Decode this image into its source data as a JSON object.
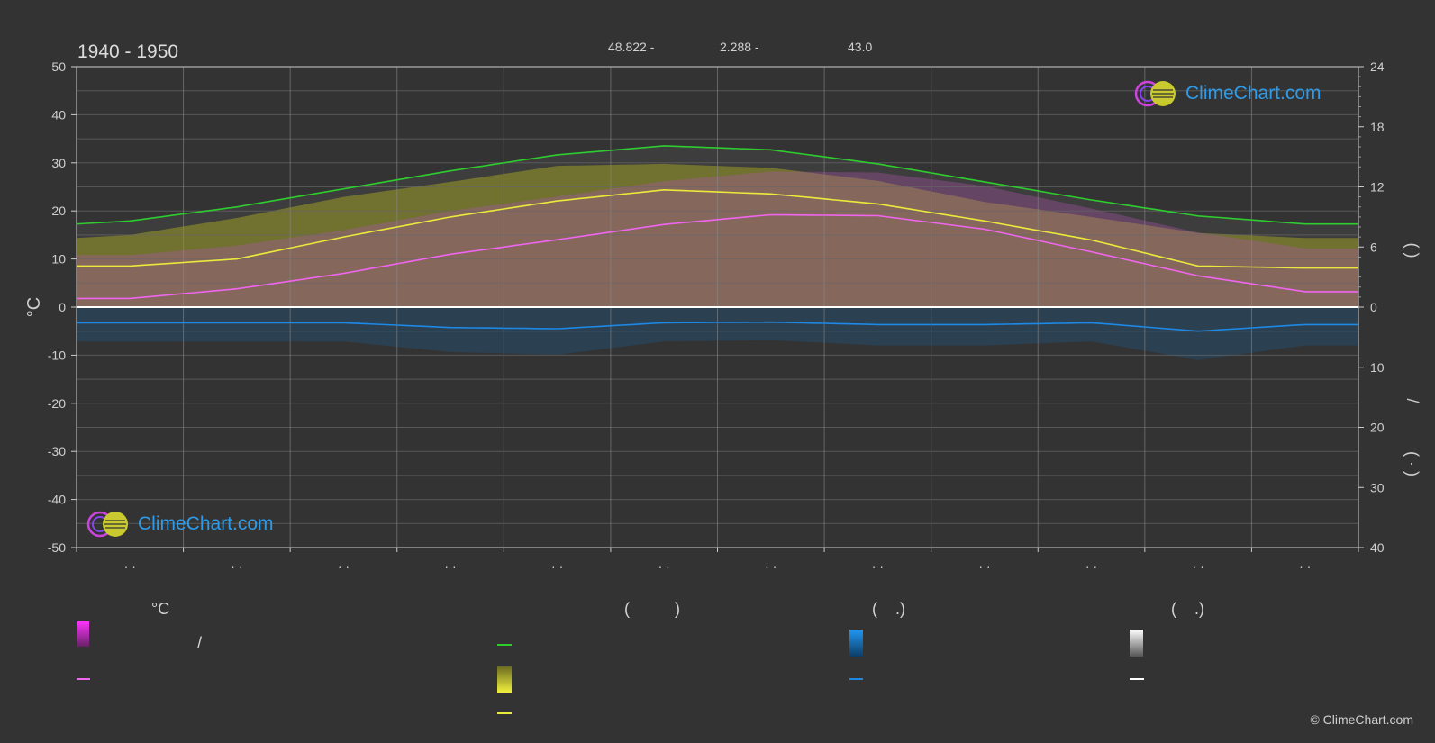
{
  "period": "1940 - 1950",
  "location": {
    "lat": "48.822 -",
    "lon": "2.288 -",
    "elev": "43.0"
  },
  "logo_text": "ClimeChart.com",
  "copyright": "© ClimeChart.com",
  "legend": {
    "col1_head": "°C",
    "col2_head": "(          )",
    "col3_head": "(    .)",
    "col4_head": "(    .)",
    "slash": "/"
  },
  "colors": {
    "background": "#333333",
    "daylight": "#2ecc2e",
    "sunshine": "#eaea3c",
    "temperature": "#ee66ee",
    "rain": "#1e88e5",
    "snow": "#ffffff"
  },
  "chart_data": {
    "type": "line",
    "title": "1940 - 1950",
    "ylabel": "°C",
    "ylim": [
      -50,
      50
    ],
    "y_ticks": [
      50,
      40,
      30,
      20,
      10,
      0,
      -10,
      -20,
      -30,
      -40,
      -50
    ],
    "y2_upper_ticks": [
      24,
      18,
      12,
      6,
      0
    ],
    "y2_upper_range": [
      0,
      24
    ],
    "y2_lower_ticks": [
      10,
      20,
      30,
      40
    ],
    "y2_lower_range": [
      0,
      40
    ],
    "y2_labels": [
      "(    )",
      "/",
      "(  ·  )"
    ],
    "x_month_labels": [
      "· ·",
      "· ·",
      "· ·",
      "· ·",
      "· ·",
      "· ·",
      "· ·",
      "· ·",
      "· ·",
      "· ·",
      "· ·",
      "· ·"
    ],
    "grid": true,
    "months": 12,
    "series": [
      {
        "key": "daylight",
        "x": [
          0,
          0.5,
          1.5,
          2.5,
          3.5,
          4.5,
          5.5,
          6.5,
          7.5,
          8.5,
          9.5,
          10.5,
          11.5,
          12
        ],
        "values": [
          8.3,
          8.6,
          10.0,
          11.8,
          13.6,
          15.2,
          16.1,
          15.7,
          14.3,
          12.5,
          10.7,
          9.1,
          8.3,
          8.3
        ]
      },
      {
        "key": "sunshine_mean",
        "x": [
          0,
          0.5,
          1.5,
          2.5,
          3.5,
          4.5,
          5.5,
          6.5,
          7.5,
          8.5,
          9.5,
          10.5,
          11.5,
          12
        ],
        "values": [
          4.1,
          4.1,
          4.8,
          7.0,
          9.0,
          10.6,
          11.7,
          11.3,
          10.3,
          8.6,
          6.7,
          4.1,
          3.9,
          3.9
        ]
      },
      {
        "key": "sunshine_max",
        "x": [
          0,
          0.5,
          1.5,
          2.5,
          3.5,
          4.5,
          5.5,
          6.5,
          7.5,
          8.5,
          9.5,
          10.5,
          11.5,
          12
        ],
        "values": [
          6.9,
          7.2,
          8.9,
          11.0,
          12.5,
          14.1,
          14.3,
          13.9,
          12.6,
          10.5,
          9.0,
          7.4,
          6.9,
          6.9
        ]
      },
      {
        "key": "temp_mean",
        "x": [
          0,
          0.5,
          1.5,
          2.5,
          3.5,
          4.5,
          5.5,
          6.5,
          7.5,
          8.5,
          9.5,
          10.5,
          11.5,
          12
        ],
        "values": [
          1.8,
          1.8,
          3.8,
          7.0,
          11.0,
          14.0,
          17.2,
          19.2,
          19.0,
          16.2,
          11.5,
          6.5,
          3.2,
          3.2
        ]
      },
      {
        "key": "rain_mean",
        "x": [
          0,
          0.5,
          1.5,
          2.5,
          3.5,
          4.5,
          5.5,
          6.5,
          7.5,
          8.5,
          9.5,
          10.5,
          11.5,
          12
        ],
        "values": [
          2.6,
          2.6,
          2.6,
          2.6,
          3.4,
          3.6,
          2.6,
          2.5,
          2.9,
          2.9,
          2.6,
          4.0,
          2.9,
          2.9
        ]
      }
    ]
  }
}
